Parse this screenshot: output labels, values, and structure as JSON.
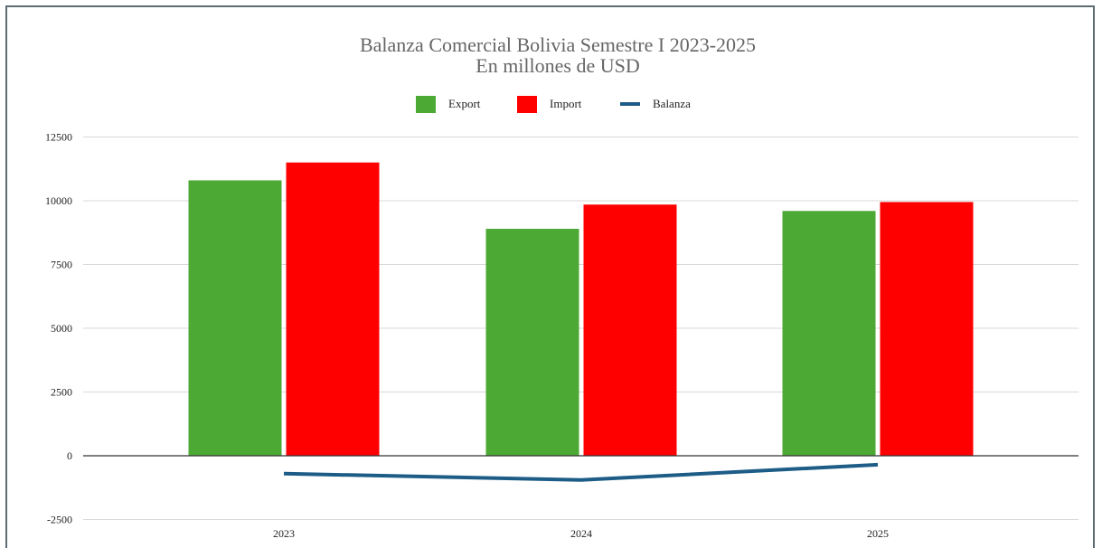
{
  "chart_data": {
    "type": "bar",
    "title": "Balanza Comercial Bolivia Semestre I 2023-2025",
    "subtitle": "En millones de USD",
    "categories": [
      "2023",
      "2024",
      "2025"
    ],
    "series": [
      {
        "name": "Export",
        "kind": "bar",
        "color": "#4caa34",
        "values": [
          10800,
          8900,
          9600
        ]
      },
      {
        "name": "Import",
        "kind": "bar",
        "color": "#ff0000",
        "values": [
          11500,
          9850,
          9950
        ]
      },
      {
        "name": "Balanza",
        "kind": "line",
        "color": "#1c5c86",
        "values": [
          -700,
          -950,
          -350
        ]
      }
    ],
    "yticks": [
      "12500",
      "10000",
      "7500",
      "5000",
      "2500",
      "0",
      "-2500"
    ],
    "ylim": [
      -2500,
      12500
    ],
    "grid": true,
    "legend_position": "top"
  }
}
